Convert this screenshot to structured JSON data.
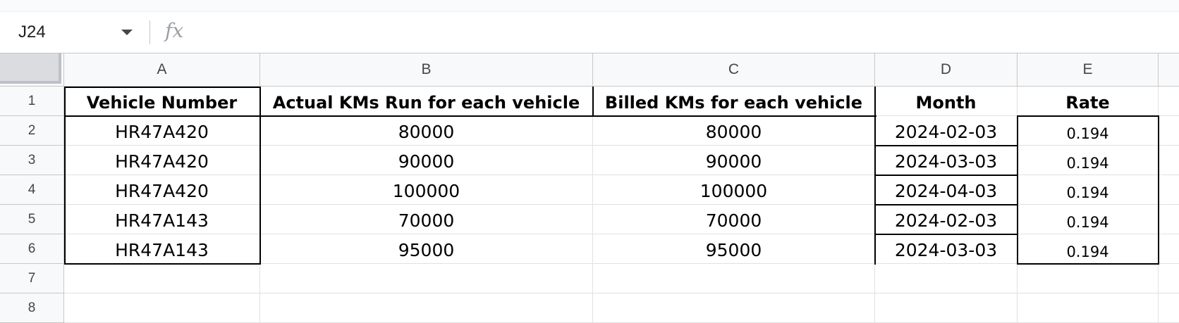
{
  "formula_bar": {
    "cell_ref": "J24",
    "fx_label": "fx",
    "formula_value": ""
  },
  "columns": [
    "A",
    "B",
    "C",
    "D",
    "E"
  ],
  "rows": [
    "1",
    "2",
    "3",
    "4",
    "5",
    "6",
    "7",
    "8"
  ],
  "table": {
    "headers": [
      "Vehicle Number",
      "Actual KMs Run for each vehicle",
      "Billed KMs for each vehicle",
      "Month",
      "Rate"
    ],
    "rows": [
      [
        "HR47A420",
        "80000",
        "80000",
        "2024-02-03",
        "0.194"
      ],
      [
        "HR47A420",
        "90000",
        "90000",
        "2024-03-03",
        "0.194"
      ],
      [
        "HR47A420",
        "100000",
        "100000",
        "2024-04-03",
        "0.194"
      ],
      [
        "HR47A143",
        "70000",
        "70000",
        "2024-02-03",
        "0.194"
      ],
      [
        "HR47A143",
        "95000",
        "95000",
        "2024-03-03",
        "0.194"
      ]
    ]
  },
  "icons": {
    "dropdown": "chevron-down-icon",
    "formula": "fx-icon"
  }
}
